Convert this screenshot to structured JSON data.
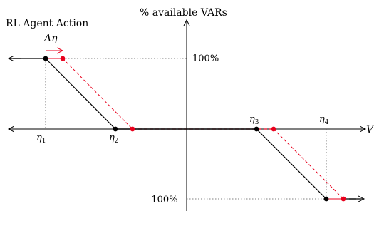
{
  "labels": {
    "y_axis_title": "% available VARs",
    "x_axis_label": "V",
    "caption": "RL Agent Action",
    "delta_eta": "Δη",
    "y_pos": "100%",
    "y_neg": "-100%",
    "eta1_sym": "η",
    "eta1_sub": "1",
    "eta2_sym": "η",
    "eta2_sub": "2",
    "eta3_sym": "η",
    "eta3_sub": "3",
    "eta4_sym": "η",
    "eta4_sub": "4"
  },
  "colors": {
    "original": "#000000",
    "shifted": "#e8001c",
    "guide": "#555555"
  },
  "diagram": {
    "original_curve_points": [
      "100% until η1",
      "0% from η2 to η3",
      "-100% after η4"
    ],
    "shifted_curve": "original curve shifted right by Δη"
  }
}
